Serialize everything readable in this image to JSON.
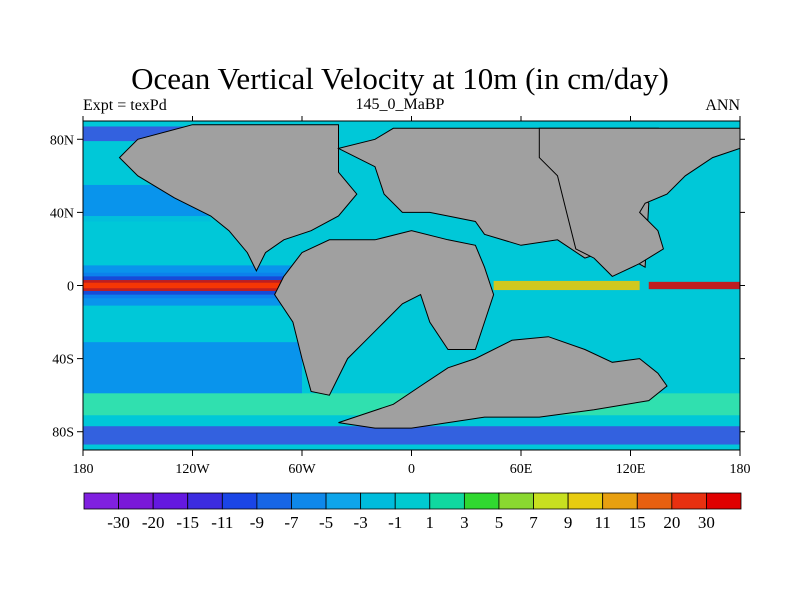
{
  "title": "Ocean Vertical Velocity at 10m (in cm/day)",
  "left_label": "Expt = texPd",
  "center_label": "145_0_MaBP",
  "right_label": "ANN",
  "map": {
    "lon_range": [
      -180,
      180
    ],
    "lat_range": [
      -90,
      90
    ],
    "x_ticks": [
      {
        "value": -180,
        "label": "180"
      },
      {
        "value": -120,
        "label": "120W"
      },
      {
        "value": -60,
        "label": "60W"
      },
      {
        "value": 0,
        "label": "0"
      },
      {
        "value": 60,
        "label": "60E"
      },
      {
        "value": 120,
        "label": "120E"
      },
      {
        "value": 180,
        "label": "180"
      }
    ],
    "y_ticks": [
      {
        "value": 80,
        "label": "80N"
      },
      {
        "value": 40,
        "label": "40N"
      },
      {
        "value": 0,
        "label": "0"
      },
      {
        "value": -40,
        "label": "40S"
      },
      {
        "value": -80,
        "label": "80S"
      }
    ],
    "land_color": "#a0a0a0",
    "background_ocean_color": "#00c8d8",
    "land_polygons": [
      {
        "name": "north-america",
        "points": [
          [
            -120,
            88
          ],
          [
            -40,
            88
          ],
          [
            -40,
            62
          ],
          [
            -30,
            50
          ],
          [
            -40,
            38
          ],
          [
            -55,
            30
          ],
          [
            -70,
            25
          ],
          [
            -80,
            18
          ],
          [
            -85,
            8
          ],
          [
            -90,
            18
          ],
          [
            -100,
            30
          ],
          [
            -110,
            38
          ],
          [
            -130,
            48
          ],
          [
            -150,
            60
          ],
          [
            -160,
            70
          ],
          [
            -150,
            80
          ]
        ]
      },
      {
        "name": "europe-asia",
        "points": [
          [
            -10,
            86
          ],
          [
            135,
            86
          ],
          [
            125,
            75
          ],
          [
            120,
            65
          ],
          [
            120,
            55
          ],
          [
            130,
            45
          ],
          [
            128,
            10
          ],
          [
            110,
            20
          ],
          [
            95,
            15
          ],
          [
            80,
            25
          ],
          [
            60,
            22
          ],
          [
            40,
            28
          ],
          [
            35,
            35
          ],
          [
            20,
            38
          ],
          [
            10,
            40
          ],
          [
            -5,
            40
          ],
          [
            -15,
            50
          ],
          [
            -20,
            65
          ],
          [
            -40,
            75
          ],
          [
            -20,
            80
          ]
        ]
      },
      {
        "name": "asia-east",
        "points": [
          [
            70,
            86
          ],
          [
            180,
            86
          ],
          [
            180,
            75
          ],
          [
            165,
            70
          ],
          [
            150,
            60
          ],
          [
            140,
            50
          ],
          [
            128,
            45
          ],
          [
            125,
            40
          ],
          [
            135,
            30
          ],
          [
            138,
            20
          ],
          [
            125,
            12
          ],
          [
            110,
            5
          ],
          [
            100,
            15
          ],
          [
            90,
            20
          ],
          [
            85,
            40
          ],
          [
            80,
            60
          ],
          [
            70,
            70
          ]
        ]
      },
      {
        "name": "south-america-africa",
        "points": [
          [
            -60,
            18
          ],
          [
            -45,
            25
          ],
          [
            -20,
            25
          ],
          [
            0,
            30
          ],
          [
            20,
            25
          ],
          [
            35,
            22
          ],
          [
            40,
            10
          ],
          [
            45,
            -5
          ],
          [
            40,
            -20
          ],
          [
            35,
            -35
          ],
          [
            20,
            -35
          ],
          [
            10,
            -20
          ],
          [
            5,
            -5
          ],
          [
            -5,
            -10
          ],
          [
            -15,
            -20
          ],
          [
            -25,
            -30
          ],
          [
            -35,
            -40
          ],
          [
            -45,
            -60
          ],
          [
            -55,
            -58
          ],
          [
            -60,
            -40
          ],
          [
            -65,
            -20
          ],
          [
            -75,
            -5
          ],
          [
            -70,
            5
          ]
        ]
      },
      {
        "name": "antarctica-india-australia",
        "points": [
          [
            -40,
            -75
          ],
          [
            -10,
            -65
          ],
          [
            5,
            -55
          ],
          [
            20,
            -45
          ],
          [
            35,
            -40
          ],
          [
            55,
            -30
          ],
          [
            75,
            -28
          ],
          [
            95,
            -35
          ],
          [
            110,
            -42
          ],
          [
            125,
            -40
          ],
          [
            135,
            -48
          ],
          [
            140,
            -55
          ],
          [
            130,
            -63
          ],
          [
            100,
            -68
          ],
          [
            70,
            -72
          ],
          [
            40,
            -72
          ],
          [
            20,
            -75
          ],
          [
            0,
            -78
          ],
          [
            -20,
            -78
          ]
        ]
      }
    ],
    "features": [
      {
        "type": "band",
        "lat_center": 0,
        "lat_half_width": 3,
        "lon_from": -180,
        "lon_to": -70,
        "color": "#e00000"
      },
      {
        "type": "band",
        "lat_center": 0,
        "lat_half_width": 1.5,
        "lon_from": -180,
        "lon_to": -70,
        "color": "#ff3b00"
      },
      {
        "type": "band",
        "lat_center": 0,
        "lat_half_width": 2,
        "lon_from": 130,
        "lon_to": 180,
        "color": "#e00000"
      },
      {
        "type": "band",
        "lat_center": 0,
        "lat_half_width": 2.5,
        "lon_from": 45,
        "lon_to": 125,
        "color": "#f5c800"
      },
      {
        "type": "band",
        "lat_center": 5,
        "lat_half_width": 2,
        "lon_from": -180,
        "lon_to": -70,
        "color": "#1a35d8"
      },
      {
        "type": "band",
        "lat_center": -5,
        "lat_half_width": 2,
        "lon_from": -180,
        "lon_to": -70,
        "color": "#1a35d8"
      },
      {
        "type": "band",
        "lat_center": 8,
        "lat_half_width": 3,
        "lon_from": -180,
        "lon_to": -60,
        "color": "#0a8bf0"
      },
      {
        "type": "band",
        "lat_center": -8,
        "lat_half_width": 3,
        "lon_from": -180,
        "lon_to": -60,
        "color": "#0a8bf0"
      },
      {
        "type": "band",
        "lat_center": -82,
        "lat_half_width": 5,
        "lon_from": -180,
        "lon_to": 180,
        "color": "#3c4fe0"
      },
      {
        "type": "band",
        "lat_center": 83,
        "lat_half_width": 4,
        "lon_from": -180,
        "lon_to": -120,
        "color": "#3c4fe0"
      },
      {
        "type": "band",
        "lat_center": 45,
        "lat_half_width": 10,
        "lon_from": -180,
        "lon_to": -110,
        "color": "#0a8bf0"
      },
      {
        "type": "band",
        "lat_center": -45,
        "lat_half_width": 14,
        "lon_from": -180,
        "lon_to": -60,
        "color": "#0a8bf0"
      },
      {
        "type": "band",
        "lat_center": 30,
        "lat_half_width": 8,
        "lon_from": -180,
        "lon_to": -100,
        "color": "#00c8d8"
      },
      {
        "type": "band",
        "lat_center": -65,
        "lat_half_width": 6,
        "lon_from": -180,
        "lon_to": 180,
        "color": "#38e4a8"
      }
    ]
  },
  "colorbar": {
    "levels": [
      "-30",
      "-20",
      "-15",
      "-11",
      "-9",
      "-7",
      "-5",
      "-3",
      "-1",
      "1",
      "3",
      "5",
      "7",
      "9",
      "11",
      "15",
      "20",
      "30"
    ],
    "colors": [
      "#8020e0",
      "#7a18d8",
      "#6418e0",
      "#3c2ce0",
      "#1a45e6",
      "#1766e6",
      "#0f88ea",
      "#0ea5ea",
      "#00bcdc",
      "#00cad0",
      "#10d8a0",
      "#30d830",
      "#8ad830",
      "#c8e020",
      "#e8cc10",
      "#e8a010",
      "#e86010",
      "#e83010",
      "#e00000"
    ]
  }
}
